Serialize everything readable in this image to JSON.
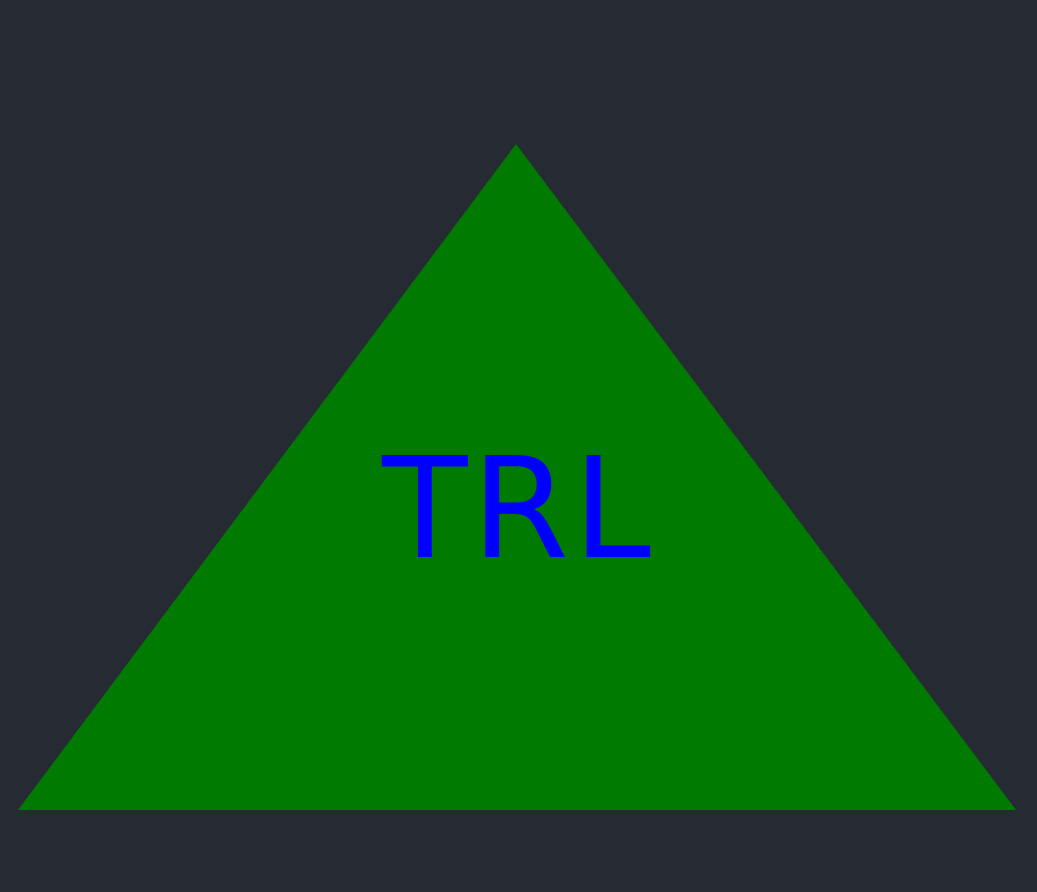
{
  "shape": {
    "kind": "triangle",
    "fill_color": "#007a00",
    "text": "TRL",
    "text_color": "#0000ff"
  },
  "background_color": "#262a33"
}
